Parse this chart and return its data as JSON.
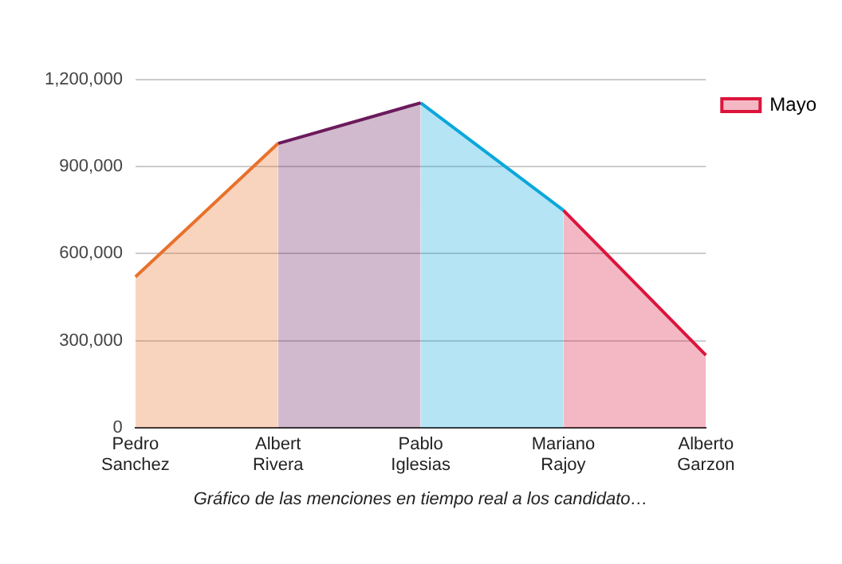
{
  "chart_data": {
    "type": "area",
    "xlabel": "Gráfico de las menciones en tiempo real a los candidato…",
    "categories": [
      "Pedro Sanchez",
      "Albert Rivera",
      "Pablo Iglesias",
      "Mariano Rajoy",
      "Alberto Garzon"
    ],
    "series": [
      {
        "color": "#e8712b",
        "values": [
          520000,
          980000,
          null,
          null,
          null
        ]
      },
      {
        "color": "#6b1a5c",
        "values": [
          null,
          980000,
          1120000,
          null,
          null
        ]
      },
      {
        "color": "#0aa7dc",
        "values": [
          null,
          null,
          1120000,
          750000,
          null
        ]
      },
      {
        "name": "Mayo",
        "color": "#dc143c",
        "values": [
          null,
          null,
          null,
          750000,
          250000
        ]
      }
    ],
    "ylim": [
      0,
      1200000
    ],
    "yticks": [
      0,
      {
        "value": 300000,
        "label": "300,000"
      },
      {
        "value": 600000,
        "label": "600,000"
      },
      {
        "value": 900000,
        "label": "900,000"
      },
      {
        "value": 1200000,
        "label": "1,200,000"
      }
    ],
    "grid": "y",
    "legend": "top right"
  }
}
